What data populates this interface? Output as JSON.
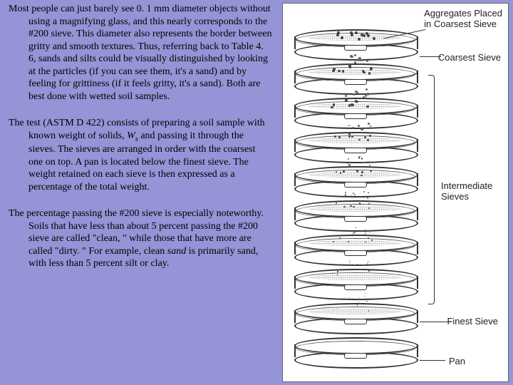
{
  "background_color": "#9494d6",
  "diagram_bg": "#ffffff",
  "font_family": "Times New Roman",
  "font_size_pt": 11,
  "paragraphs": {
    "p1": "Most people can just barely see 0. 1 mm diameter objects without using a magnifying glass, and this nearly corresponds to the #200 sieve. This diameter also represents the border between gritty and smooth textures. Thus, referring back to Table 4. 6, sands and silts could be visually distinguished by looking at the particles (if you can see them, it's a sand) and by feeling for grittiness (if it feels gritty, it's a sand). Both are best done with wetted soil samples.",
    "p2_a": "The test (ASTM D 422) consists of preparing a soil sample with known weight of solids, ",
    "p2_ws": "W",
    "p2_sub": "s",
    "p2_b": " and passing it through the sieves. The sieves are arranged in order with the coarsest one on top. A pan is located below the finest sieve. The weight retained on each sieve is then expressed as a percentage of the total weight.",
    "p3_a": "The percentage passing the #200 sieve is especially noteworthy. Soils that have less than about 5 percent passing the #200 sieve are called \"clean, \" while those that have more are called \"dirty. \" For example, clean ",
    "p3_ital": "sand",
    "p3_b": " is primarily sand, with less than 5 percent silt or clay."
  },
  "diagram": {
    "label_aggregates": "Aggregates Placed\nin Coarsest Sieve",
    "label_coarsest": "Coarsest Sieve",
    "label_intermediate": "Intermediate\nSieves",
    "label_finest": "Finest Sieve",
    "label_pan": "Pan",
    "sieve_count": 9,
    "stroke_color": "#333333",
    "particle_color": "#555555"
  }
}
